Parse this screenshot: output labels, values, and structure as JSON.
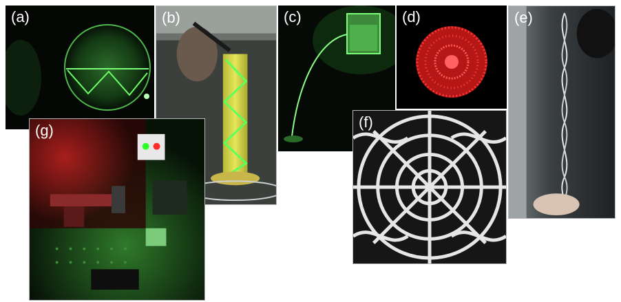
{
  "panels": {
    "a": {
      "label": "(a)",
      "subject": "green laser reflecting inside water-filled glass sphere"
    },
    "b": {
      "label": "(b)",
      "subject": "green laser spiral in yellow liquid cylinder"
    },
    "c": {
      "label": "(c)",
      "subject": "green laser guided through water jet from container"
    },
    "d": {
      "label": "(d)",
      "subject": "red speckle disc pattern"
    },
    "e": {
      "label": "(e)",
      "subject": "twisted standing wave on a vertical string"
    },
    "f": {
      "label": "(f)",
      "subject": "Chladni plate sand pattern"
    },
    "g": {
      "label": "(g)",
      "subject": "optical table laser setup under red and green light"
    }
  },
  "colors": {
    "laser_green": "#5dff5a",
    "laser_red": "#ff2a2a",
    "liquid_yellow": "#d8e04a",
    "background_black": "#050805"
  }
}
